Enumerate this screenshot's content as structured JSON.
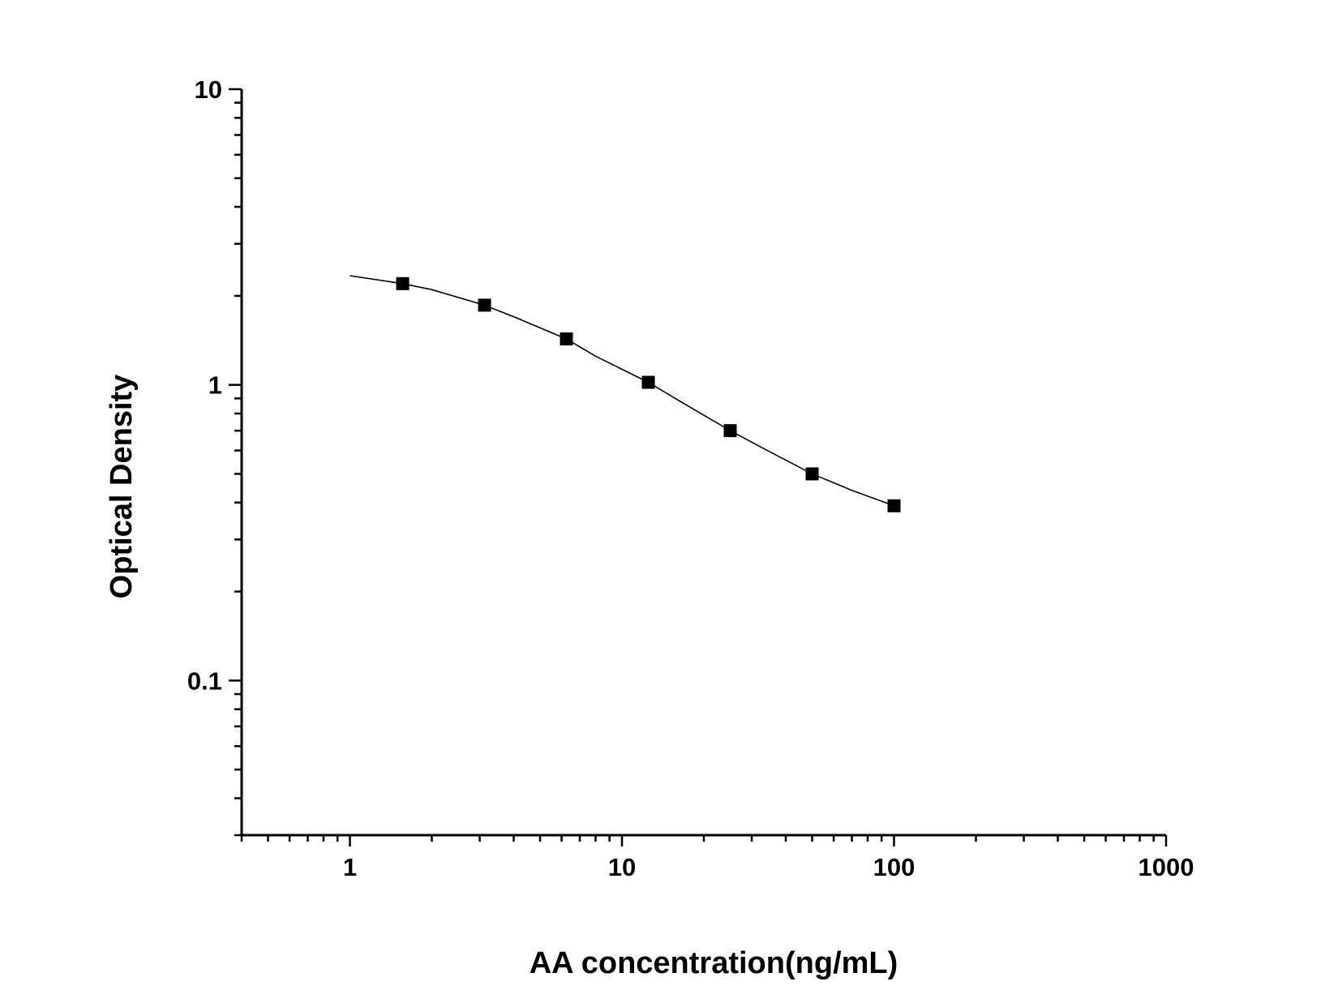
{
  "chart_data": {
    "type": "scatter",
    "title": "",
    "xlabel": "AA concentration(ng/mL)",
    "ylabel": "Optical Density",
    "x_scale": "log",
    "y_scale": "log",
    "xlim": [
      0.4,
      1000
    ],
    "ylim": [
      0.03,
      10
    ],
    "x_tick_labels": [
      "1",
      "10",
      "100",
      "1000"
    ],
    "y_tick_labels": [
      "0.1",
      "1",
      "10"
    ],
    "grid": false,
    "legend": "none",
    "series": [
      {
        "marker": "square",
        "color": "#000000",
        "x": [
          1.5625,
          3.125,
          6.25,
          12.5,
          25,
          50,
          100
        ],
        "y": [
          2.2,
          1.86,
          1.43,
          1.02,
          0.7,
          0.5,
          0.39
        ]
      }
    ],
    "fit_curve": {
      "color": "#000000",
      "x": [
        1.0,
        1.5625,
        2.0,
        3.125,
        4.0,
        6.25,
        8.0,
        12.5,
        16.0,
        25,
        32,
        50,
        70,
        100
      ],
      "y": [
        2.34,
        2.2,
        2.1,
        1.86,
        1.7,
        1.43,
        1.25,
        1.02,
        0.89,
        0.7,
        0.62,
        0.5,
        0.44,
        0.39
      ]
    }
  }
}
